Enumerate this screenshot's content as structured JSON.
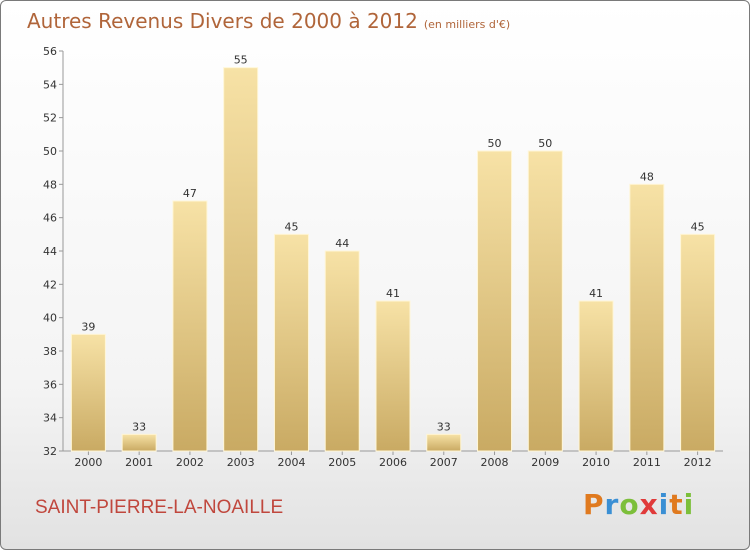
{
  "title": {
    "main": "Autres Revenus Divers de 2000 à 2012",
    "unit": "(en milliers d'€)"
  },
  "commune": "SAINT-PIERRE-LA-NOAILLE",
  "logo": "Proxiti",
  "chart_data": {
    "type": "bar",
    "title": "Autres Revenus Divers de 2000 à 2012",
    "subtitle": "(en milliers d'€)",
    "categories": [
      "2000",
      "2001",
      "2002",
      "2003",
      "2004",
      "2005",
      "2006",
      "2007",
      "2008",
      "2009",
      "2010",
      "2011",
      "2012"
    ],
    "values": [
      39,
      33,
      47,
      55,
      45,
      44,
      41,
      33,
      50,
      50,
      41,
      48,
      45
    ],
    "ylim": [
      32,
      56
    ],
    "yticks": [
      32,
      34,
      36,
      38,
      40,
      42,
      44,
      46,
      48,
      50,
      52,
      54,
      56
    ],
    "grid": false,
    "colors": {
      "bar_top": "#f7e2a6",
      "bar_bottom": "#c9aa63",
      "title": "#b0653a",
      "commune": "#c0473d"
    }
  }
}
